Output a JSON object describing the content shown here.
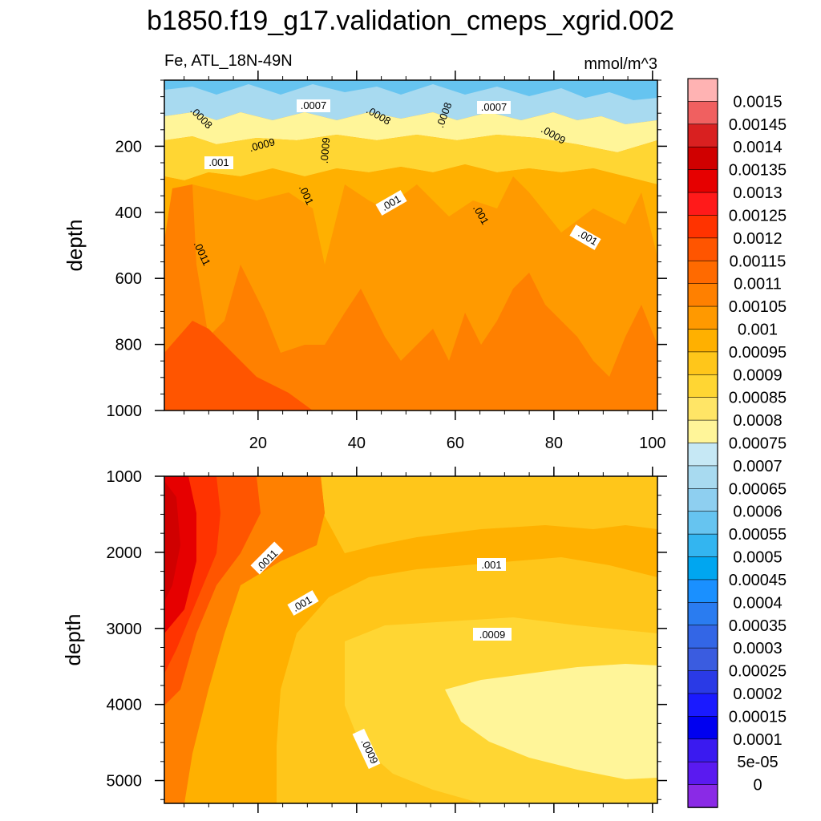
{
  "figure": {
    "title": "b1850.f19_g17.validation_cmeps_xgrid.002",
    "left_subtitle": "Fe, ATL_18N-49N",
    "right_subtitle": "mmol/m^3"
  },
  "chart_data": [
    {
      "type": "heatmap",
      "panel": "upper",
      "ylabel": "depth",
      "xlabel": "",
      "xlim": [
        1,
        101
      ],
      "ylim": [
        0,
        1000
      ],
      "y_inverted": true,
      "x_ticks": [
        20,
        40,
        60,
        80,
        100
      ],
      "x_tick_labels": [
        "20",
        "40",
        "60",
        "80",
        "100"
      ],
      "y_ticks": [
        200,
        400,
        600,
        800,
        1000
      ],
      "y_tick_labels": [
        "200",
        "400",
        "600",
        "800",
        "1000"
      ],
      "contour_labels": [
        ".0007",
        ".0007",
        ".0008",
        ".0008",
        ".0008",
        ".0009",
        ".0009",
        ".0009",
        ".001",
        ".001",
        ".001",
        ".001",
        ".001",
        ".001",
        ".0011"
      ],
      "approx_field": "surface values ~0.0006-0.0007 near 40 m rising to ~0.00095-0.001 by 200-300 m, ~0.001-0.00105 at 400-800 m, up to ~0.0012 near x<15 at 1000 m"
    },
    {
      "type": "heatmap",
      "panel": "lower",
      "ylabel": "depth",
      "xlabel": "",
      "xlim": [
        1,
        101
      ],
      "ylim": [
        1000,
        5300
      ],
      "y_inverted": true,
      "x_ticks": [
        20,
        40,
        60,
        80,
        100
      ],
      "x_tick_labels": [],
      "y_ticks": [
        1000,
        2000,
        3000,
        4000,
        5000
      ],
      "y_tick_labels": [
        "1000",
        "2000",
        "3000",
        "4000",
        "5000"
      ],
      "contour_labels": [
        ".0011",
        ".001",
        ".001",
        ".0009",
        ".0009"
      ],
      "approx_field": "~0.00125 at x<8 near 2000 m decreasing eastward; ~0.001 band near 2000 m; minimum ~0.0008 at x>60 below 3800 m"
    }
  ],
  "colorbar": {
    "labels": [
      "0.0015",
      "0.00145",
      "0.0014",
      "0.00135",
      "0.0013",
      "0.00125",
      "0.0012",
      "0.00115",
      "0.0011",
      "0.00105",
      "0.001",
      "0.00095",
      "0.0009",
      "0.00085",
      "0.0008",
      "0.00075",
      "0.0007",
      "0.00065",
      "0.0006",
      "0.00055",
      "0.0005",
      "0.00045",
      "0.0004",
      "0.00035",
      "0.0003",
      "0.00025",
      "0.0002",
      "0.00015",
      "0.0001",
      "5e-05",
      "0"
    ],
    "colors": [
      "#ffb3b3",
      "#f06060",
      "#d92020",
      "#d00000",
      "#e60000",
      "#ff1a1a",
      "#ff3300",
      "#ff5500",
      "#ff6a00",
      "#ff8000",
      "#ff9900",
      "#ffb000",
      "#ffc61a",
      "#ffd633",
      "#ffe566",
      "#fff599",
      "#c6e8f5",
      "#a8daf0",
      "#8ecff0",
      "#66c4f0",
      "#33b5f0",
      "#00a6f0",
      "#1a90ff",
      "#2a7cf0",
      "#3366e6",
      "#3a5ce0",
      "#2a3ae6",
      "#1a1aff",
      "#0000f0",
      "#3a1af0",
      "#5a1af0",
      "#8a2ae6"
    ]
  }
}
